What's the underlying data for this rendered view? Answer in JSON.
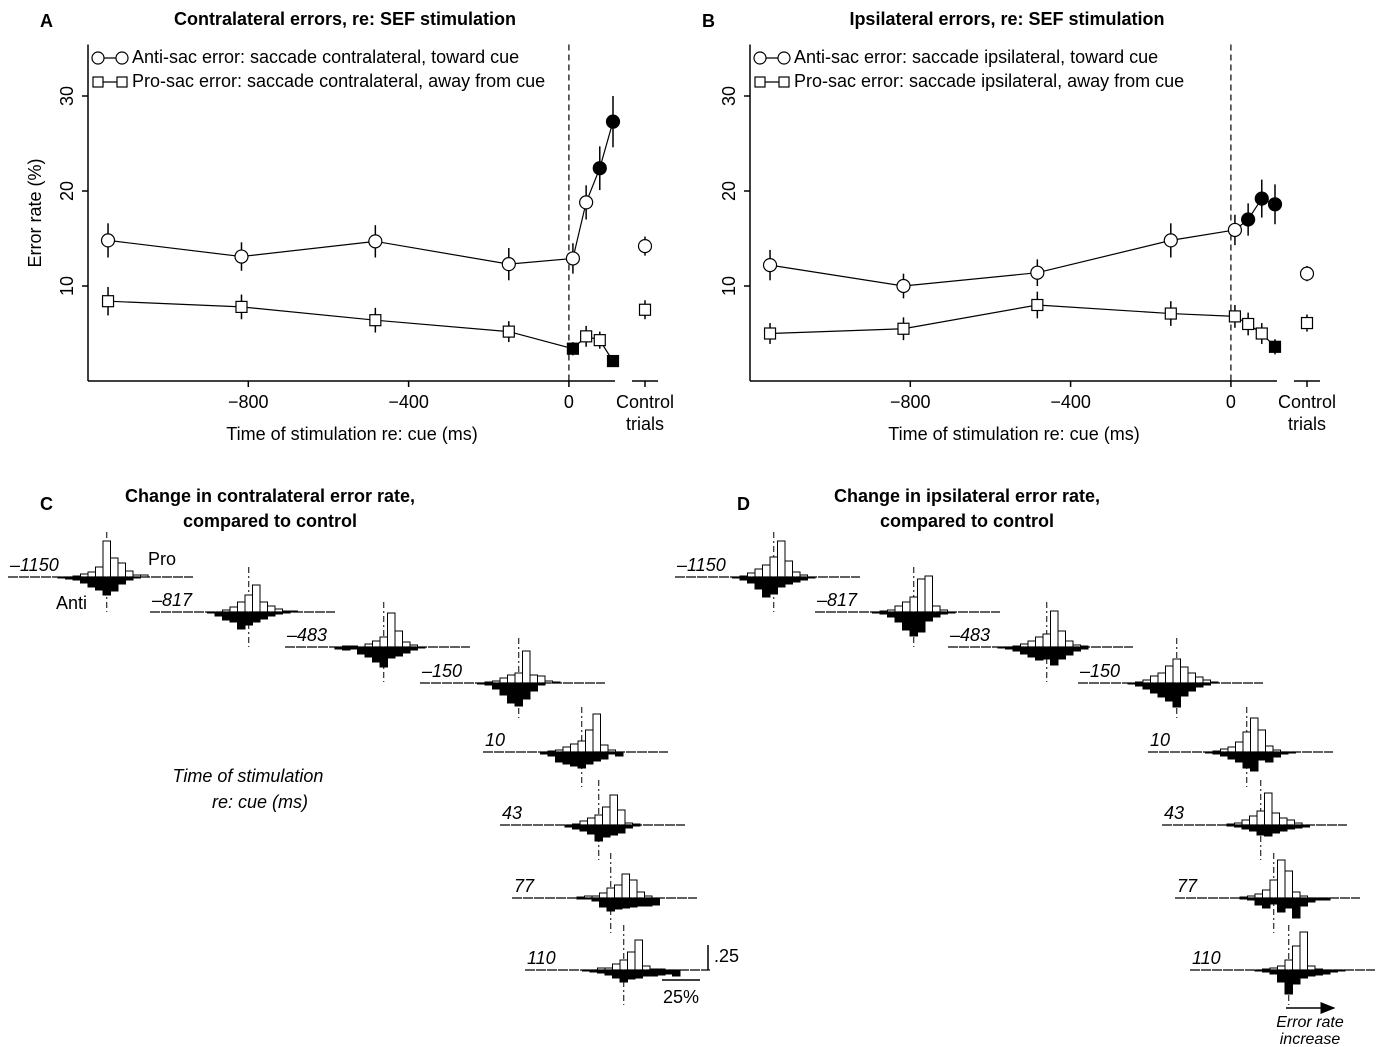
{
  "chart_data": [
    {
      "type": "line",
      "panel": "A",
      "title": "Contralateral errors, re: SEF stimulation",
      "xlabel": "Time of stimulation re: cue (ms)",
      "ylabel": "Error rate (%)",
      "x": [
        -1150,
        -817,
        -483,
        -150,
        10,
        43,
        77,
        110
      ],
      "xlim": [
        -1195,
        115
      ],
      "ylim": [
        0,
        35
      ],
      "xticks": [
        {
          "value": -800,
          "label": "−800"
        },
        {
          "value": -400,
          "label": "−400"
        },
        0
      ],
      "yticks": [
        10,
        20,
        30
      ],
      "control_label": [
        "Control",
        "trials"
      ],
      "series": [
        {
          "name": "Anti-sac error: saccade contralateral, toward cue",
          "marker": "circle",
          "color": "#000000",
          "values": [
            14.8,
            13.1,
            14.7,
            12.3,
            12.9,
            18.8,
            22.4,
            27.3
          ],
          "errors": [
            1.8,
            1.5,
            1.7,
            1.7,
            1.6,
            1.8,
            2.3,
            2.7
          ],
          "filled": [
            false,
            false,
            false,
            false,
            false,
            false,
            true,
            true
          ],
          "control": 14.2,
          "control_error": 1.0
        },
        {
          "name": "Pro-sac error: saccade contralateral, away from cue",
          "marker": "square",
          "color": "#000000",
          "values": [
            8.4,
            7.8,
            6.4,
            5.2,
            3.4,
            4.7,
            4.3,
            2.1
          ],
          "errors": [
            1.5,
            1.3,
            1.3,
            1.1,
            0.7,
            1.1,
            0.9,
            0.5
          ],
          "filled": [
            false,
            false,
            false,
            false,
            true,
            false,
            false,
            true
          ],
          "control": 7.5,
          "control_error": 1.0
        }
      ]
    },
    {
      "type": "line",
      "panel": "B",
      "title": "Ipsilateral errors, re: SEF stimulation",
      "xlabel": "Time of stimulation re: cue (ms)",
      "ylabel": null,
      "x": [
        -1150,
        -817,
        -483,
        -150,
        10,
        43,
        77,
        110
      ],
      "xlim": [
        -1195,
        115
      ],
      "ylim": [
        0,
        35
      ],
      "xticks": [
        {
          "value": -800,
          "label": "−800"
        },
        {
          "value": -400,
          "label": "−400"
        },
        0
      ],
      "yticks": [
        10,
        20,
        30
      ],
      "control_label": [
        "Control",
        "trials"
      ],
      "series": [
        {
          "name": "Anti-sac error: saccade ipsilateral, toward cue",
          "marker": "circle",
          "color": "#000000",
          "values": [
            12.2,
            10.0,
            11.4,
            14.8,
            15.9,
            17.0,
            19.2,
            18.6
          ],
          "errors": [
            1.6,
            1.3,
            1.4,
            1.8,
            1.6,
            1.7,
            2.0,
            2.1
          ],
          "filled": [
            false,
            false,
            false,
            false,
            false,
            true,
            true,
            true
          ],
          "control": 11.3,
          "control_error": 0.8
        },
        {
          "name": "Pro-sac error: saccade ipsilateral, away from cue",
          "marker": "square",
          "color": "#000000",
          "values": [
            5.0,
            5.5,
            8.0,
            7.1,
            6.8,
            6.0,
            5.0,
            3.6
          ],
          "errors": [
            1.1,
            1.2,
            1.4,
            1.3,
            1.2,
            1.2,
            1.1,
            0.8
          ],
          "filled": [
            false,
            false,
            false,
            false,
            false,
            false,
            false,
            true
          ],
          "control": 6.1,
          "control_error": 0.9
        }
      ]
    },
    {
      "type": "histogram-rows",
      "panel": "C",
      "title": [
        "Change in contralateral error rate,",
        "compared to control"
      ],
      "pro_label": "Pro",
      "anti_label": "Anti",
      "axis_note": [
        "Time of stimulation",
        "re: cue (ms)"
      ],
      "scale_y": {
        "value": 0.25,
        "label": ".25"
      },
      "scale_x": {
        "value": 25,
        "label": "25%"
      },
      "rows": [
        {
          "label": "–1150",
          "pro": [
            0,
            0,
            0.01,
            0.03,
            0.05,
            0.1,
            0.36,
            0.19,
            0.14,
            0.06,
            0.02,
            0.02,
            0,
            0
          ],
          "anti": [
            0.01,
            0.02,
            0.03,
            0.06,
            0.1,
            0.13,
            0.18,
            0.14,
            0.07,
            0.03,
            0.01,
            0,
            0,
            0
          ]
        },
        {
          "label": "–817",
          "pro": [
            0,
            0,
            0,
            0.02,
            0.05,
            0.1,
            0.17,
            0.27,
            0.1,
            0.06,
            0.03,
            0.01,
            0.01,
            0
          ],
          "anti": [
            0,
            0.01,
            0.04,
            0.08,
            0.1,
            0.17,
            0.13,
            0.1,
            0.07,
            0.04,
            0.02,
            0.01,
            0,
            0
          ]
        },
        {
          "label": "–483",
          "pro": [
            0,
            0.01,
            0.01,
            0,
            0.03,
            0.06,
            0.1,
            0.34,
            0.16,
            0.05,
            0.02,
            0,
            0,
            0
          ],
          "anti": [
            0.02,
            0.03,
            0.02,
            0.07,
            0.1,
            0.15,
            0.2,
            0.11,
            0.09,
            0.06,
            0.03,
            0.01,
            0,
            0
          ]
        },
        {
          "label": "–150",
          "pro": [
            0,
            0,
            0.01,
            0.02,
            0.05,
            0.08,
            0.1,
            0.32,
            0.08,
            0.07,
            0.02,
            0.01,
            0,
            0
          ],
          "anti": [
            0,
            0.01,
            0.02,
            0.06,
            0.12,
            0.2,
            0.23,
            0.16,
            0.08,
            0.02,
            0,
            0,
            0,
            0
          ]
        },
        {
          "label": "10",
          "pro": [
            0,
            0,
            0.01,
            0.02,
            0.05,
            0.08,
            0.11,
            0.22,
            0.38,
            0.07,
            0.02,
            0,
            0,
            0
          ],
          "anti": [
            0,
            0.02,
            0.04,
            0.1,
            0.12,
            0.14,
            0.16,
            0.12,
            0.09,
            0.07,
            0.02,
            0.04,
            0,
            0
          ]
        },
        {
          "label": "43",
          "pro": [
            0,
            0,
            0,
            0.01,
            0.04,
            0.07,
            0.1,
            0.18,
            0.3,
            0.15,
            0.02,
            0.01,
            0,
            0
          ],
          "anti": [
            0,
            0,
            0.02,
            0.04,
            0.06,
            0.09,
            0.16,
            0.12,
            0.1,
            0.08,
            0.03,
            0.01,
            0,
            0
          ]
        },
        {
          "label": "77",
          "pro": [
            0,
            0,
            0.01,
            0.02,
            0.02,
            0.05,
            0.1,
            0.13,
            0.24,
            0.18,
            0.06,
            0.02,
            0,
            0
          ],
          "anti": [
            0,
            0,
            0.01,
            0.01,
            0.03,
            0.09,
            0.13,
            0.11,
            0.1,
            0.09,
            0.08,
            0.08,
            0.07,
            0
          ]
        },
        {
          "label": "110",
          "pro": [
            0,
            0,
            0,
            0.02,
            0.02,
            0.06,
            0.1,
            0.18,
            0.3,
            0.04,
            0.01,
            0.01,
            0,
            0
          ],
          "anti": [
            0,
            0.01,
            0.02,
            0.03,
            0.05,
            0.08,
            0.12,
            0.09,
            0.08,
            0.06,
            0.06,
            0.05,
            0.04,
            0.06
          ]
        }
      ]
    },
    {
      "type": "histogram-rows",
      "panel": "D",
      "title": [
        "Change in ipsilateral error rate,",
        "compared to control"
      ],
      "arrow_label": [
        "Error rate",
        "increase"
      ],
      "rows": [
        {
          "label": "–1150",
          "pro": [
            0,
            0,
            0.01,
            0.04,
            0.08,
            0.12,
            0.2,
            0.36,
            0.16,
            0.05,
            0.02,
            0,
            0,
            0
          ],
          "anti": [
            0,
            0.01,
            0.03,
            0.06,
            0.12,
            0.2,
            0.17,
            0.1,
            0.07,
            0.05,
            0.03,
            0.01,
            0,
            0
          ]
        },
        {
          "label": "–817",
          "pro": [
            0,
            0,
            0.01,
            0.02,
            0.06,
            0.1,
            0.15,
            0.33,
            0.36,
            0.06,
            0.02,
            0,
            0,
            0
          ],
          "anti": [
            0,
            0.01,
            0.02,
            0.05,
            0.1,
            0.18,
            0.24,
            0.2,
            0.09,
            0.05,
            0.02,
            0.01,
            0,
            0
          ]
        },
        {
          "label": "–483",
          "pro": [
            0,
            0,
            0.01,
            0.03,
            0.06,
            0.1,
            0.13,
            0.36,
            0.16,
            0.06,
            0.02,
            0.01,
            0,
            0
          ],
          "anti": [
            0.01,
            0.02,
            0.04,
            0.07,
            0.1,
            0.13,
            0.12,
            0.18,
            0.12,
            0.08,
            0.04,
            0.02,
            0,
            0
          ]
        },
        {
          "label": "–150",
          "pro": [
            0,
            0.01,
            0.03,
            0.07,
            0.1,
            0.17,
            0.24,
            0.16,
            0.1,
            0.06,
            0.03,
            0.01,
            0,
            0
          ],
          "anti": [
            0.01,
            0.03,
            0.06,
            0.1,
            0.14,
            0.18,
            0.24,
            0.13,
            0.08,
            0.04,
            0.02,
            0,
            0,
            0
          ]
        },
        {
          "label": "10",
          "pro": [
            0,
            0,
            0.01,
            0.03,
            0.05,
            0.1,
            0.2,
            0.34,
            0.22,
            0.06,
            0.02,
            0,
            0,
            0
          ],
          "anti": [
            0,
            0.01,
            0.02,
            0.04,
            0.07,
            0.1,
            0.16,
            0.19,
            0.08,
            0.1,
            0.05,
            0.02,
            0.01,
            0
          ]
        },
        {
          "label": "43",
          "pro": [
            0,
            0,
            0.01,
            0.02,
            0.05,
            0.09,
            0.14,
            0.32,
            0.12,
            0.07,
            0.05,
            0.02,
            0,
            0
          ],
          "anti": [
            0,
            0,
            0.01,
            0.02,
            0.04,
            0.06,
            0.1,
            0.11,
            0.08,
            0.06,
            0.04,
            0.03,
            0.02,
            0
          ]
        },
        {
          "label": "77",
          "pro": [
            0,
            0,
            0.01,
            0.02,
            0.04,
            0.08,
            0.18,
            0.38,
            0.27,
            0.06,
            0.02,
            0,
            0,
            0
          ],
          "anti": [
            0,
            0,
            0.01,
            0.02,
            0.07,
            0.1,
            0.06,
            0.14,
            0.1,
            0.2,
            0.08,
            0.04,
            0.02,
            0.02
          ]
        },
        {
          "label": "110",
          "pro": [
            0,
            0,
            0,
            0.01,
            0.02,
            0.04,
            0.1,
            0.24,
            0.38,
            0.04,
            0.01,
            0,
            0,
            0
          ],
          "anti": [
            0,
            0,
            0.01,
            0.02,
            0.04,
            0.12,
            0.24,
            0.14,
            0.08,
            0.06,
            0.05,
            0.04,
            0.02,
            0.01
          ]
        }
      ]
    }
  ]
}
